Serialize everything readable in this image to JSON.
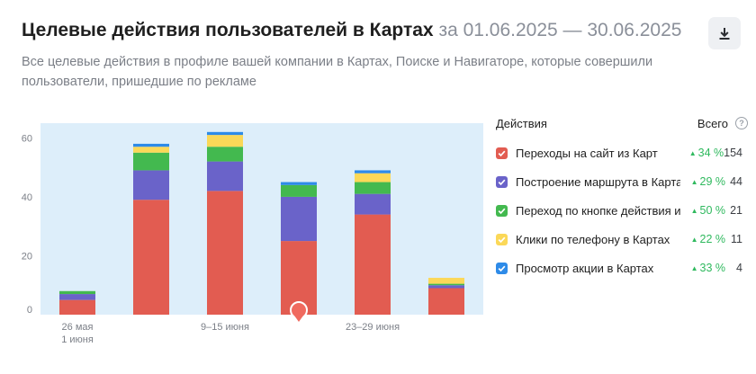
{
  "header": {
    "title": "Целевые действия пользователей в Картах",
    "period": "за 01.06.2025 — 30.06.2025",
    "subtitle": "Все целевые действия в профиле вашей компании в Картах, Поиске и Навигаторе, которые совершили пользователи, пришедшие по рекламе",
    "download_icon": "download-icon"
  },
  "legend": {
    "header_actions": "Действия",
    "header_total": "Всего",
    "help_icon": "question-icon",
    "items": [
      {
        "label": "Переходы на сайт из Карт",
        "change": "34 %",
        "total": "154",
        "color": "#e25c51"
      },
      {
        "label": "Построение маршрута в Картах",
        "change": "29 %",
        "total": "44",
        "color": "#6a63c9"
      },
      {
        "label": "Переход по кнопке действия из Карт",
        "change": "50 %",
        "total": "21",
        "color": "#43b94f"
      },
      {
        "label": "Клики по телефону в Картах",
        "change": "22 %",
        "total": "11",
        "color": "#fbd858"
      },
      {
        "label": "Просмотр акции в Картах",
        "change": "33 %",
        "total": "4",
        "color": "#2e8be8"
      }
    ]
  },
  "chart_data": {
    "type": "bar",
    "stacked": true,
    "categories": [
      "26 мая\n1 июня",
      "",
      "9–15 июня",
      "",
      "23–29 июня",
      ""
    ],
    "x_tick_labels": [
      {
        "index": 0,
        "lines": [
          "26 мая",
          "1 июня"
        ]
      },
      {
        "index": 2,
        "lines": [
          "9–15 июня"
        ]
      },
      {
        "index": 4,
        "lines": [
          "23–29 июня"
        ]
      }
    ],
    "ylim": [
      0,
      65
    ],
    "yticks": [
      0,
      20,
      40,
      60
    ],
    "grid": false,
    "plot_background": "#ddeefa",
    "series": [
      {
        "name": "Переходы на сайт из Карт",
        "color": "#e25c51",
        "values": [
          5,
          39,
          42,
          25,
          34,
          9
        ]
      },
      {
        "name": "Построение маршрута в Картах",
        "color": "#6a63c9",
        "values": [
          2,
          10,
          10,
          15,
          7,
          1
        ]
      },
      {
        "name": "Переход по кнопке действия из Карт",
        "color": "#43b94f",
        "values": [
          1,
          6,
          5,
          4,
          4,
          0.5
        ]
      },
      {
        "name": "Клики по телефону в Картах",
        "color": "#fbd858",
        "values": [
          0,
          2,
          4,
          0,
          3,
          2
        ]
      },
      {
        "name": "Просмотр акции в Картах",
        "color": "#2e8be8",
        "values": [
          0,
          1,
          1,
          1,
          1,
          0
        ]
      }
    ],
    "marker": {
      "index": 3,
      "value": 0,
      "color": "#f06a5f"
    }
  }
}
